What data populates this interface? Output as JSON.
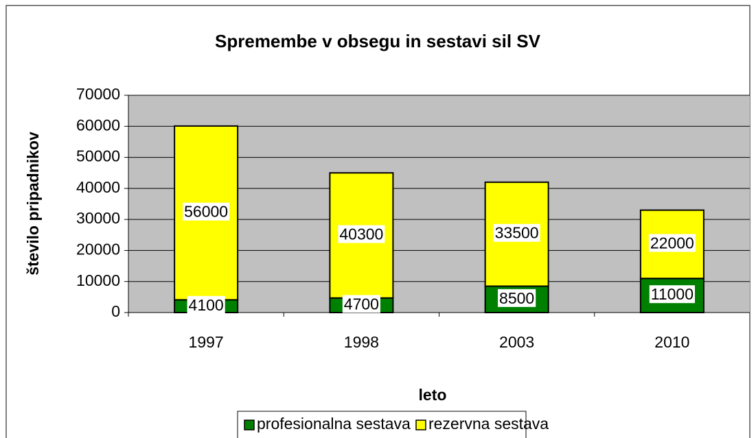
{
  "chart_data": {
    "type": "stacked_bar",
    "title": "Spremembe v obsegu in sestavi sil SV",
    "x_label": "leto",
    "y_label": "število pripadnikov",
    "categories": [
      "1997",
      "1998",
      "2003",
      "2010"
    ],
    "series": [
      {
        "name": "profesionalna sestava",
        "color": "#008000",
        "values": [
          4100,
          4700,
          8500,
          11000
        ]
      },
      {
        "name": "rezervna sestava",
        "color": "#ffff00",
        "values": [
          56000,
          40300,
          33500,
          22000
        ]
      }
    ],
    "ylim": [
      0,
      70000
    ],
    "yticks": [
      0,
      10000,
      20000,
      30000,
      40000,
      50000,
      60000,
      70000
    ],
    "grid": true,
    "legend": "bottom",
    "plot_background": "#c0c0c0"
  }
}
